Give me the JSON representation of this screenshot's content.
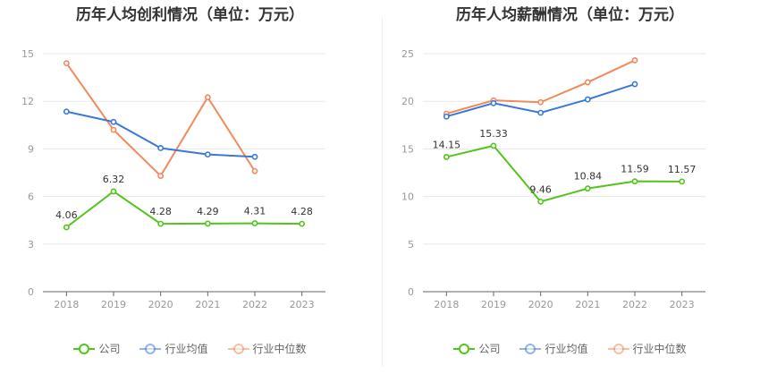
{
  "chart_data": [
    {
      "type": "line",
      "title": "历年人均创利情况（单位：万元）",
      "categories": [
        "2018",
        "2019",
        "2020",
        "2021",
        "2022",
        "2023"
      ],
      "ylim": [
        0,
        15
      ],
      "yticks": [
        "0",
        "3",
        "6",
        "9",
        "12",
        "15"
      ],
      "grid": true,
      "legend_position": "bottom",
      "series": [
        {
          "name": "公司",
          "color": "#52c41a",
          "values": [
            4.06,
            6.32,
            4.28,
            4.29,
            4.31,
            4.28
          ],
          "labels": [
            "4.06",
            "6.32",
            "4.28",
            "4.29",
            "4.31",
            "4.28"
          ]
        },
        {
          "name": "行业均值",
          "color": "#3a78d8",
          "values": [
            11.35,
            10.7,
            9.05,
            8.65,
            8.5,
            null
          ]
        },
        {
          "name": "行业中位数",
          "color": "#f08a5d",
          "values": [
            14.4,
            10.2,
            7.3,
            12.25,
            7.6,
            null
          ]
        }
      ]
    },
    {
      "type": "line",
      "title": "历年人均薪酬情况（单位：万元）",
      "categories": [
        "2018",
        "2019",
        "2020",
        "2021",
        "2022",
        "2023"
      ],
      "ylim": [
        0,
        25
      ],
      "yticks": [
        "0",
        "5",
        "10",
        "15",
        "20",
        "25"
      ],
      "grid": true,
      "legend_position": "bottom",
      "series": [
        {
          "name": "公司",
          "color": "#52c41a",
          "values": [
            14.15,
            15.33,
            9.46,
            10.84,
            11.59,
            11.57
          ],
          "labels": [
            "14.15",
            "15.33",
            "9.46",
            "10.84",
            "11.59",
            "11.57"
          ]
        },
        {
          "name": "行业均值",
          "color": "#3a78d8",
          "values": [
            18.4,
            19.8,
            18.8,
            20.2,
            21.8,
            null
          ]
        },
        {
          "name": "行业中位数",
          "color": "#f08a5d",
          "values": [
            18.7,
            20.1,
            19.9,
            22.0,
            24.3,
            null
          ]
        }
      ]
    }
  ]
}
